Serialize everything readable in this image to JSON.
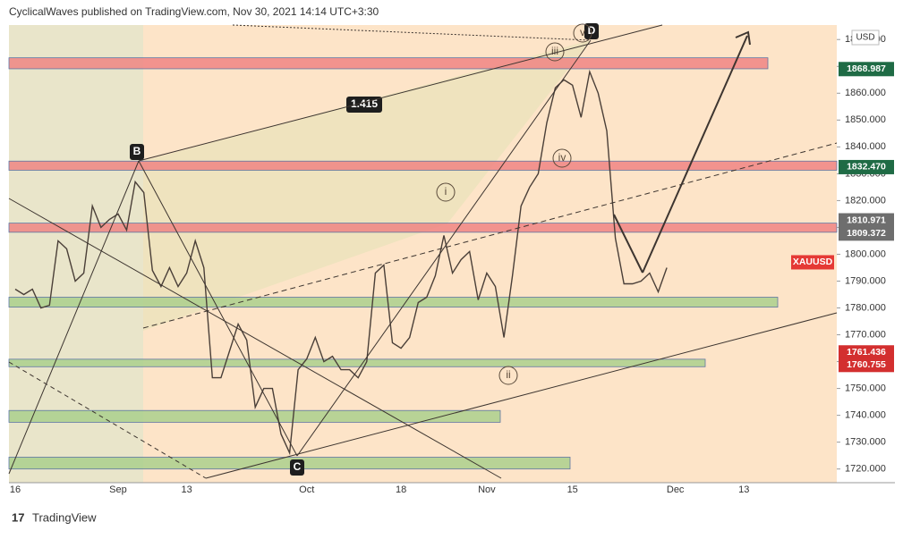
{
  "header": "CyclicalWaves published on TradingView.com, Nov 30, 2021 14:14 UTC+3:30",
  "footer": "TradingView",
  "chart_data": {
    "type": "line",
    "symbol": "XAUUSD",
    "currency": "USD",
    "color": "#4a3f38",
    "categories": [
      "16",
      null,
      null,
      null,
      null,
      null,
      null,
      null,
      null,
      null,
      null,
      null,
      "Sep",
      null,
      null,
      null,
      null,
      null,
      null,
      null,
      "13",
      null,
      null,
      null,
      null,
      null,
      null,
      null,
      null,
      null,
      null,
      null,
      null,
      null,
      "Oct",
      null,
      null,
      null,
      null,
      null,
      null,
      null,
      null,
      null,
      null,
      "18",
      null,
      null,
      null,
      null,
      null,
      null,
      null,
      null,
      null,
      "Nov",
      null,
      null,
      null,
      null,
      null,
      null,
      null,
      null,
      null,
      "15",
      null,
      null,
      null,
      null,
      null,
      null,
      null,
      null,
      null,
      null,
      null,
      "Dec",
      null,
      null,
      null,
      null,
      null,
      null,
      null,
      "13",
      null,
      null,
      null,
      null
    ],
    "values": [
      1787,
      1785,
      1787,
      1780,
      1781,
      1805,
      1802,
      1790,
      1793,
      1818,
      1810,
      1813,
      1815,
      1809,
      1827,
      1823,
      1794,
      1788,
      1795,
      1788,
      1793,
      1805,
      1795,
      1754,
      1754,
      1764,
      1774,
      1768,
      1743,
      1750,
      1750,
      1733,
      1726,
      1757,
      1761,
      1769,
      1760,
      1762,
      1757,
      1757,
      1754,
      1760,
      1793,
      1796,
      1767,
      1765,
      1769,
      1782,
      1784,
      1792,
      1807,
      1793,
      1798,
      1801,
      1783,
      1793,
      1788,
      1769,
      1792,
      1818,
      1825,
      1830,
      1849,
      1862,
      1865,
      1863,
      1851,
      1868,
      1860,
      1846,
      1806,
      1789,
      1789,
      1790,
      1793,
      1786,
      1795,
      null,
      null,
      null,
      null,
      null,
      null,
      null,
      null,
      null,
      null,
      null,
      null,
      null
    ],
    "ylim": [
      1714.9,
      1885.4
    ],
    "yticks": [
      {
        "value": 1720,
        "label": "1720.000"
      },
      {
        "value": 1730,
        "label": "1730.000"
      },
      {
        "value": 1740,
        "label": "1740.000"
      },
      {
        "value": 1750,
        "label": "1750.000"
      },
      {
        "value": 1760,
        "label": "1760.000"
      },
      {
        "value": 1770,
        "label": "1770.000"
      },
      {
        "value": 1780,
        "label": "1780.000"
      },
      {
        "value": 1790,
        "label": "1790.000"
      },
      {
        "value": 1800,
        "label": "1800.000"
      },
      {
        "value": 1810,
        "label": "1810.000"
      },
      {
        "value": 1820,
        "label": "1820.000"
      },
      {
        "value": 1830,
        "label": "1830.000"
      },
      {
        "value": 1840,
        "label": "1840.000"
      },
      {
        "value": 1850,
        "label": "1850.000"
      },
      {
        "value": 1860,
        "label": "1860.000"
      },
      {
        "value": 1870,
        "label": "1870.000"
      },
      {
        "value": 1880,
        "label": "1880.000"
      }
    ],
    "zones": [
      {
        "top": 1873.2,
        "bottom": 1869.1,
        "color": "#f08080"
      },
      {
        "top": 1834.7,
        "bottom": 1831.3,
        "color": "#f08080"
      },
      {
        "top": 1811.6,
        "bottom": 1808.2,
        "color": "#f08080"
      },
      {
        "top": 1784.0,
        "bottom": 1780.3,
        "color": "#a8cf8a"
      },
      {
        "top": 1760.9,
        "bottom": 1758.1,
        "color": "#a8cf8a"
      },
      {
        "top": 1741.8,
        "bottom": 1737.4,
        "color": "#a8cf8a"
      },
      {
        "top": 1724.4,
        "bottom": 1720.0,
        "color": "#a8cf8a"
      }
    ],
    "price_labels": [
      {
        "value": 1868.987,
        "label": "1868.987",
        "color": "#1f6b45"
      },
      {
        "value": 1832.47,
        "label": "1832.470",
        "color": "#1f6b45"
      },
      {
        "value": 1810.971,
        "label": "1810.971",
        "color": "#6e6e6e"
      },
      {
        "value": 1809.372,
        "label": "1809.372",
        "color": "#6e6e6e"
      },
      {
        "value": 1797,
        "label": "XAUUSD",
        "color": "#e53935"
      },
      {
        "value": 1761.436,
        "label": "1761.436",
        "color": "#d32f2f"
      },
      {
        "value": 1760.755,
        "label": "1760.755",
        "color": "#d32f2f"
      }
    ],
    "annotations": [
      "B",
      "C",
      "D",
      "1.415",
      "i",
      "ii",
      "iii",
      "iv",
      "v"
    ]
  }
}
